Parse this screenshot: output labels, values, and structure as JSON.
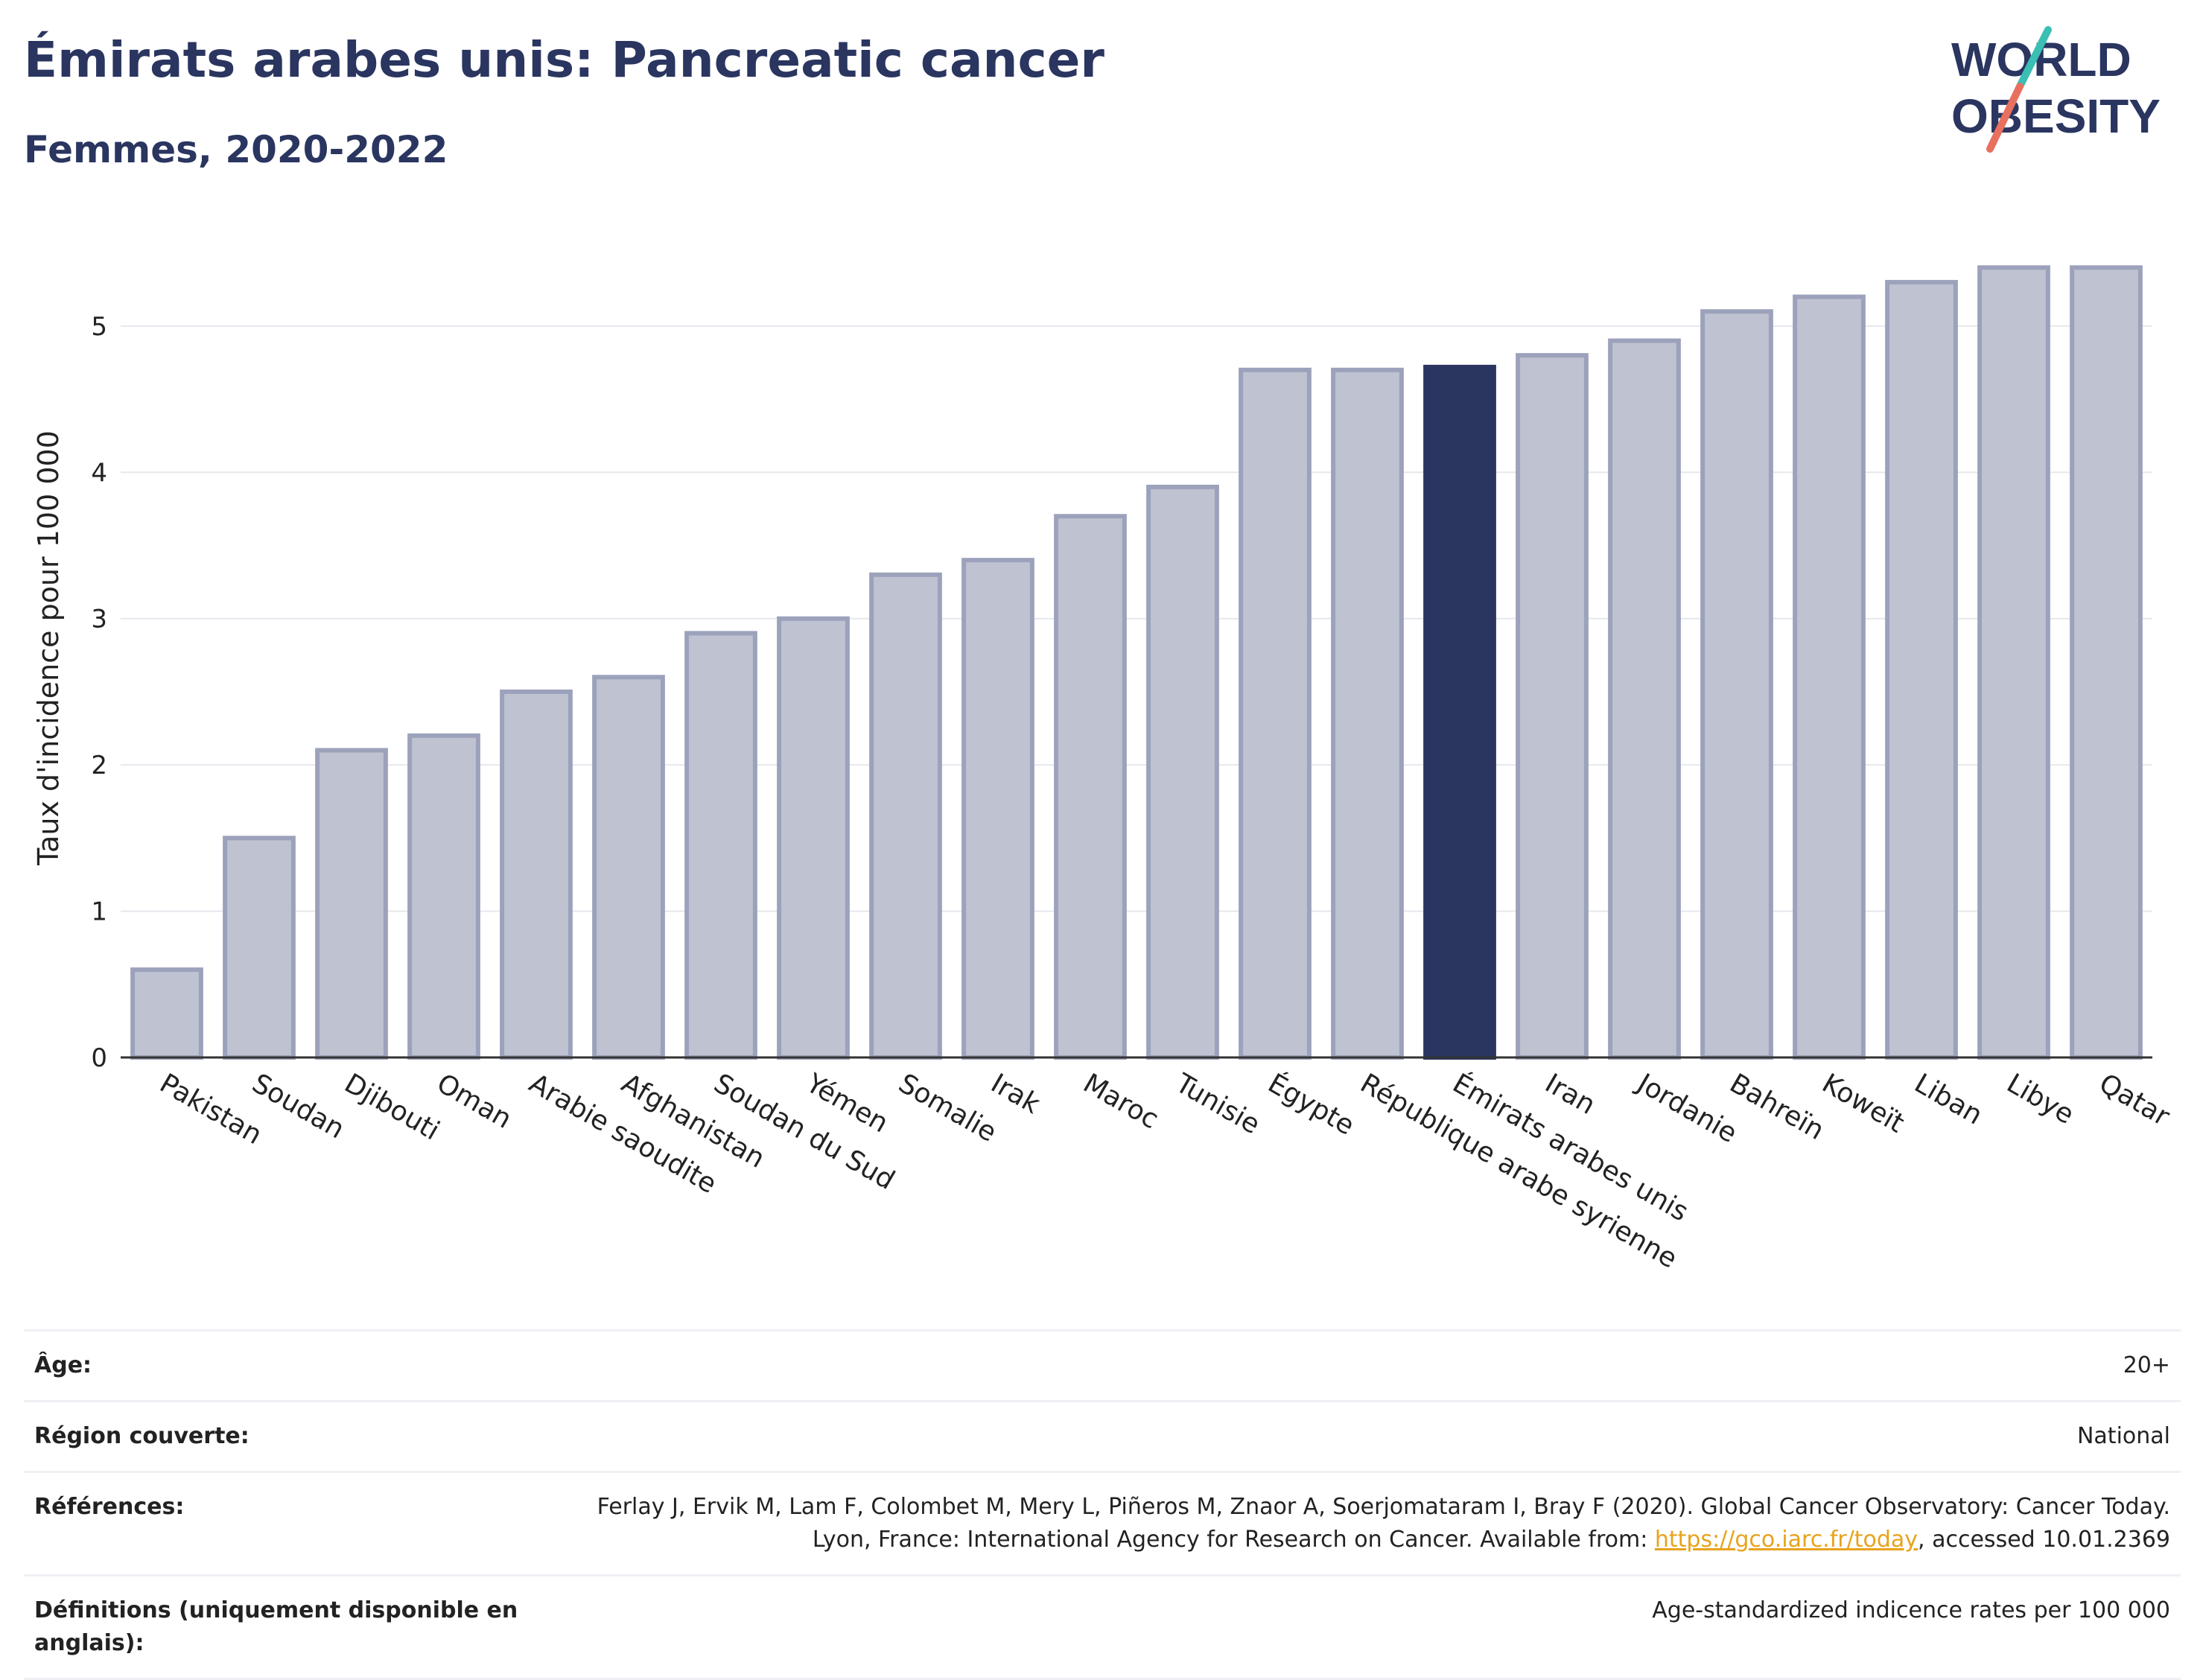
{
  "header": {
    "title": "Émirats arabes unis: Pancreatic cancer",
    "subtitle": "Femmes, 2020-2022"
  },
  "logo": {
    "line1": "WORLD",
    "line2": "OBESITY",
    "name": "world-obesity-logo"
  },
  "colors": {
    "highlight": "#2a3560",
    "bar": "#bfc3d1",
    "bar_border": "#9ca2bb",
    "accent_teal": "#3bbfb4",
    "accent_red": "#e8705e"
  },
  "chart_data": {
    "type": "bar",
    "ylabel": "Taux d'incidence pour 100 000",
    "ylim": [
      0,
      5.6
    ],
    "yticks": [
      0,
      1,
      2,
      3,
      4,
      5
    ],
    "highlight": "Émirats arabes unis",
    "grid": true,
    "categories": [
      "Pakistan",
      "Soudan",
      "Djibouti",
      "Oman",
      "Arabie saoudite",
      "Afghanistan",
      "Soudan du Sud",
      "Yémen",
      "Somalie",
      "Irak",
      "Maroc",
      "Tunisie",
      "Égypte",
      "République arabe syrienne",
      "Émirats arabes unis",
      "Iran",
      "Jordanie",
      "Bahreïn",
      "Koweït",
      "Liban",
      "Libye",
      "Qatar"
    ],
    "values": [
      0.6,
      1.5,
      2.1,
      2.2,
      2.5,
      2.6,
      2.9,
      3.0,
      3.3,
      3.4,
      3.7,
      3.9,
      4.7,
      4.7,
      4.72,
      4.8,
      4.9,
      5.1,
      5.2,
      5.3,
      5.4,
      5.4
    ]
  },
  "meta": {
    "rows": [
      {
        "label": "Âge:",
        "value": "20+"
      },
      {
        "label": "Région couverte:",
        "value": "National"
      },
      {
        "label": "Références:",
        "value_before": "Ferlay J, Ervik M, Lam F, Colombet M, Mery L, Piñeros M, Znaor A, Soerjomataram I, Bray F (2020). Global Cancer Observatory: Cancer Today. Lyon, France: International Agency for Research on Cancer. Available from: ",
        "link": "https://gco.iarc.fr/today",
        "value_after": ", accessed 10.01.2369"
      },
      {
        "label": "Définitions (uniquement disponible en anglais):",
        "value": "Age-standardized indicence rates per 100 000"
      }
    ]
  }
}
